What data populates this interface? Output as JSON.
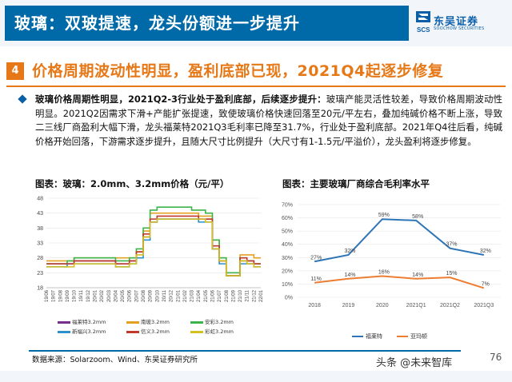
{
  "header": {
    "title": "玻璃：双玻提速，龙头份额进一步提升",
    "logo_cn": "东吴证券",
    "logo_en": "SOOCHOW SECURITIES",
    "logo_mark_text": "SCS"
  },
  "section": {
    "number": "4",
    "title": "价格周期波动性明显，盈利底部已现，2021Q4起逐步修复"
  },
  "bullet": {
    "bold_part": "玻璃价格周期性明显，2021Q2-3行业处于盈利底部，后续逐步提升：",
    "body": "玻璃产能灵活性较差，导致价格周期波动性明显。2021Q2因需求下滑+产能扩张提速，致使玻璃价格快速回落至20元/平左右，叠加纯碱价格不断上涨，导致二三线厂商盈利大幅下滑，龙头福莱特2021Q3毛利率已降至31.7%，行业处于盈利底部。2021年Q4往后看，纯碱价格开始回落，下游需求逐步提升，且随大尺寸比例提升（大尺寸有1-1.5元/平溢价），龙头盈利将逐步修复。"
  },
  "captions": {
    "chart1": "图表：玻璃：2.0mm、3.2mm价格（元/平）",
    "chart2": "图表：主要玻璃厂商综合毛利率水平"
  },
  "chart_data": [
    {
      "type": "line",
      "title": "玻璃：2.0mm、3.2mm价格（元/平）",
      "ylim": [
        18,
        48
      ],
      "yticks": [
        "48",
        "43",
        "38",
        "33",
        "28",
        "23",
        "18"
      ],
      "xticks": [
        "19/06",
        "19/07",
        "19/08",
        "19/09",
        "19/10",
        "19/11",
        "19/12",
        "20/01",
        "20/02",
        "20/03",
        "20/04",
        "20/05",
        "20/06",
        "20/07",
        "20/08",
        "20/09",
        "20/10",
        "20/11",
        "20/12",
        "21/01",
        "21/02",
        "21/03",
        "21/04",
        "21/05",
        "21/06",
        "21/07",
        "21/08",
        "21/09",
        "21/10",
        "21/11",
        "21/12",
        "22/01"
      ],
      "series": [
        {
          "name": "福莱特3.2mm",
          "color": "#7b2d8b",
          "values": [
            26,
            26,
            26,
            26,
            27,
            27,
            27,
            27,
            27,
            27,
            26,
            26,
            27,
            30,
            35,
            40,
            41,
            41,
            41,
            41,
            41,
            41,
            41,
            41,
            31,
            27,
            22,
            22,
            27,
            26,
            26,
            26
          ]
        },
        {
          "name": "南玻3.2mm",
          "color": "#e6a020",
          "values": [
            27,
            27,
            27,
            27,
            28,
            28,
            28,
            28,
            28,
            28,
            28,
            28,
            28,
            30,
            37,
            43,
            43,
            43,
            43,
            43,
            43,
            43,
            42,
            42,
            34,
            28,
            23,
            23,
            29,
            29,
            28,
            28
          ]
        },
        {
          "name": "安彩3.2mm",
          "color": "#3cb44b",
          "values": [
            26,
            26,
            26,
            27,
            28,
            28,
            28,
            28,
            28,
            28,
            27,
            27,
            28,
            31,
            38,
            44,
            45,
            45,
            45,
            45,
            45,
            44,
            44,
            43,
            34,
            28,
            23,
            23,
            28,
            27,
            26,
            26
          ]
        },
        {
          "name": "新福兴3.2mm",
          "color": "#2e8fcf",
          "values": [
            25,
            25,
            25,
            26,
            26,
            26,
            26,
            26,
            26,
            26,
            25,
            25,
            26,
            28,
            34,
            40,
            41,
            41,
            41,
            41,
            41,
            41,
            40,
            40,
            31,
            26,
            22,
            22,
            26,
            26,
            25,
            25
          ]
        },
        {
          "name": "信义3.2mm",
          "color": "#c0392b",
          "values": [
            26,
            26,
            26,
            26,
            27,
            27,
            27,
            27,
            27,
            27,
            26,
            26,
            27,
            30,
            36,
            41,
            42,
            42,
            42,
            42,
            42,
            42,
            41,
            41,
            32,
            27,
            22,
            22,
            28,
            27,
            26,
            26
          ]
        },
        {
          "name": "彩虹3.2mm",
          "color": "#d4c020",
          "values": [
            25,
            25,
            25,
            25,
            26,
            26,
            26,
            26,
            26,
            26,
            25,
            25,
            26,
            29,
            35,
            40,
            41,
            41,
            41,
            41,
            41,
            41,
            41,
            40,
            31,
            27,
            22,
            22,
            27,
            26,
            25,
            25
          ]
        }
      ]
    },
    {
      "type": "line",
      "title": "主要玻璃厂商综合毛利率水平",
      "categories": [
        "2018",
        "2019",
        "2020",
        "2021Q1",
        "2021Q2",
        "2021Q3"
      ],
      "ylim": [
        0,
        70
      ],
      "yticks": [
        "70%",
        "60%",
        "50%",
        "40%",
        "30%",
        "20%",
        "10%",
        "0%"
      ],
      "series": [
        {
          "name": "福莱特",
          "color": "#2e75b6",
          "values": [
            27,
            32,
            59,
            58,
            37,
            32
          ],
          "labels": [
            "27%",
            "32%",
            "59%",
            "58%",
            "37%",
            "32%"
          ]
        },
        {
          "name": "亚玛顿",
          "color": "#ed7d31",
          "values": [
            11,
            14,
            16,
            14,
            15,
            7
          ],
          "labels": [
            "11%",
            "14%",
            "16%",
            "14%",
            "15%",
            "7%"
          ]
        }
      ]
    }
  ],
  "footer": {
    "source": "数据来源：Solarzoom、Wind、东吴证券研究所",
    "watermark": "头条 @未来智库",
    "page": "76"
  }
}
